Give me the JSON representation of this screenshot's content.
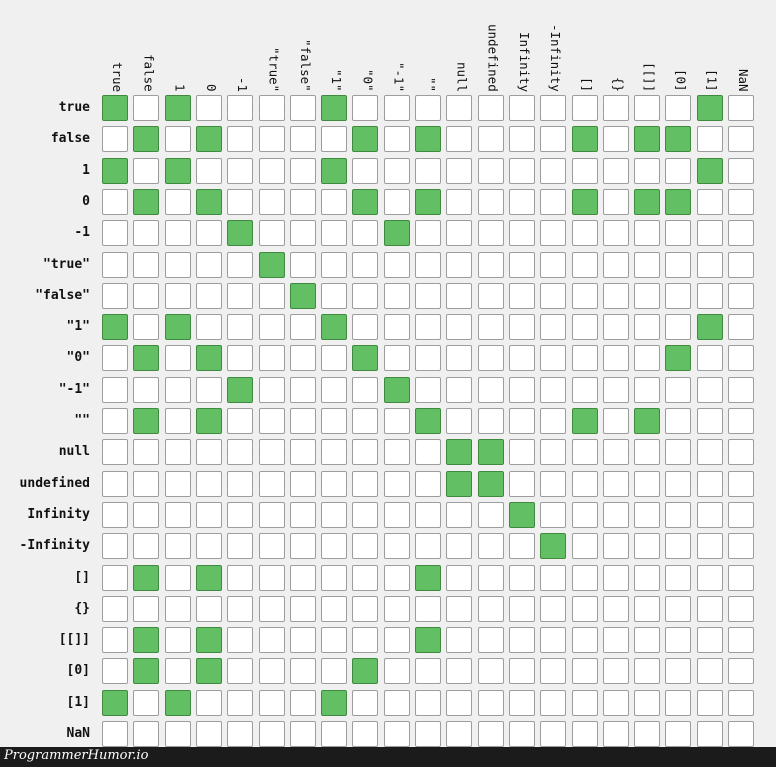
{
  "columns": [
    "true",
    "false",
    "1",
    "0",
    "-1",
    "\"true\"",
    "\"false\"",
    "\"1\"",
    "\"0\"",
    "\"-1\"",
    "\"\"",
    "null",
    "undefined",
    "Infinity",
    "-Infinity",
    "[]",
    "{}",
    "[[]]",
    "[0]",
    "[1]",
    "NaN"
  ],
  "rows": [
    "true",
    "false",
    "1",
    "0",
    "-1",
    "\"true\"",
    "\"false\"",
    "\"1\"",
    "\"0\"",
    "\"-1\"",
    "\"\"",
    "null",
    "undefined",
    "Infinity",
    "-Infinity",
    "[]",
    "{}",
    "[[]]",
    "[0]",
    "[1]",
    "NaN"
  ],
  "matrix": [
    [
      1,
      0,
      1,
      0,
      0,
      0,
      0,
      1,
      0,
      0,
      0,
      0,
      0,
      0,
      0,
      0,
      0,
      0,
      0,
      1,
      0
    ],
    [
      0,
      1,
      0,
      1,
      0,
      0,
      0,
      0,
      1,
      0,
      1,
      0,
      0,
      0,
      0,
      1,
      0,
      1,
      1,
      0,
      0
    ],
    [
      1,
      0,
      1,
      0,
      0,
      0,
      0,
      1,
      0,
      0,
      0,
      0,
      0,
      0,
      0,
      0,
      0,
      0,
      0,
      1,
      0
    ],
    [
      0,
      1,
      0,
      1,
      0,
      0,
      0,
      0,
      1,
      0,
      1,
      0,
      0,
      0,
      0,
      1,
      0,
      1,
      1,
      0,
      0
    ],
    [
      0,
      0,
      0,
      0,
      1,
      0,
      0,
      0,
      0,
      1,
      0,
      0,
      0,
      0,
      0,
      0,
      0,
      0,
      0,
      0,
      0
    ],
    [
      0,
      0,
      0,
      0,
      0,
      1,
      0,
      0,
      0,
      0,
      0,
      0,
      0,
      0,
      0,
      0,
      0,
      0,
      0,
      0,
      0
    ],
    [
      0,
      0,
      0,
      0,
      0,
      0,
      1,
      0,
      0,
      0,
      0,
      0,
      0,
      0,
      0,
      0,
      0,
      0,
      0,
      0,
      0
    ],
    [
      1,
      0,
      1,
      0,
      0,
      0,
      0,
      1,
      0,
      0,
      0,
      0,
      0,
      0,
      0,
      0,
      0,
      0,
      0,
      1,
      0
    ],
    [
      0,
      1,
      0,
      1,
      0,
      0,
      0,
      0,
      1,
      0,
      0,
      0,
      0,
      0,
      0,
      0,
      0,
      0,
      1,
      0,
      0
    ],
    [
      0,
      0,
      0,
      0,
      1,
      0,
      0,
      0,
      0,
      1,
      0,
      0,
      0,
      0,
      0,
      0,
      0,
      0,
      0,
      0,
      0
    ],
    [
      0,
      1,
      0,
      1,
      0,
      0,
      0,
      0,
      0,
      0,
      1,
      0,
      0,
      0,
      0,
      1,
      0,
      1,
      0,
      0,
      0
    ],
    [
      0,
      0,
      0,
      0,
      0,
      0,
      0,
      0,
      0,
      0,
      0,
      1,
      1,
      0,
      0,
      0,
      0,
      0,
      0,
      0,
      0
    ],
    [
      0,
      0,
      0,
      0,
      0,
      0,
      0,
      0,
      0,
      0,
      0,
      1,
      1,
      0,
      0,
      0,
      0,
      0,
      0,
      0,
      0
    ],
    [
      0,
      0,
      0,
      0,
      0,
      0,
      0,
      0,
      0,
      0,
      0,
      0,
      0,
      1,
      0,
      0,
      0,
      0,
      0,
      0,
      0
    ],
    [
      0,
      0,
      0,
      0,
      0,
      0,
      0,
      0,
      0,
      0,
      0,
      0,
      0,
      0,
      1,
      0,
      0,
      0,
      0,
      0,
      0
    ],
    [
      0,
      1,
      0,
      1,
      0,
      0,
      0,
      0,
      0,
      0,
      1,
      0,
      0,
      0,
      0,
      0,
      0,
      0,
      0,
      0,
      0
    ],
    [
      0,
      0,
      0,
      0,
      0,
      0,
      0,
      0,
      0,
      0,
      0,
      0,
      0,
      0,
      0,
      0,
      0,
      0,
      0,
      0,
      0
    ],
    [
      0,
      1,
      0,
      1,
      0,
      0,
      0,
      0,
      0,
      0,
      1,
      0,
      0,
      0,
      0,
      0,
      0,
      0,
      0,
      0,
      0
    ],
    [
      0,
      1,
      0,
      1,
      0,
      0,
      0,
      0,
      1,
      0,
      0,
      0,
      0,
      0,
      0,
      0,
      0,
      0,
      0,
      0,
      0
    ],
    [
      1,
      0,
      1,
      0,
      0,
      0,
      0,
      1,
      0,
      0,
      0,
      0,
      0,
      0,
      0,
      0,
      0,
      0,
      0,
      0,
      0
    ],
    [
      0,
      0,
      0,
      0,
      0,
      0,
      0,
      0,
      0,
      0,
      0,
      0,
      0,
      0,
      0,
      0,
      0,
      0,
      0,
      0,
      0
    ]
  ],
  "colors": {
    "on_fill": "#63bf64",
    "on_border": "#3f8a3f",
    "off_fill": "#ffffff",
    "off_border": "#9d9d9d",
    "background": "#f0f0f0"
  },
  "footer": {
    "text": "ProgrammerHumor.io"
  }
}
